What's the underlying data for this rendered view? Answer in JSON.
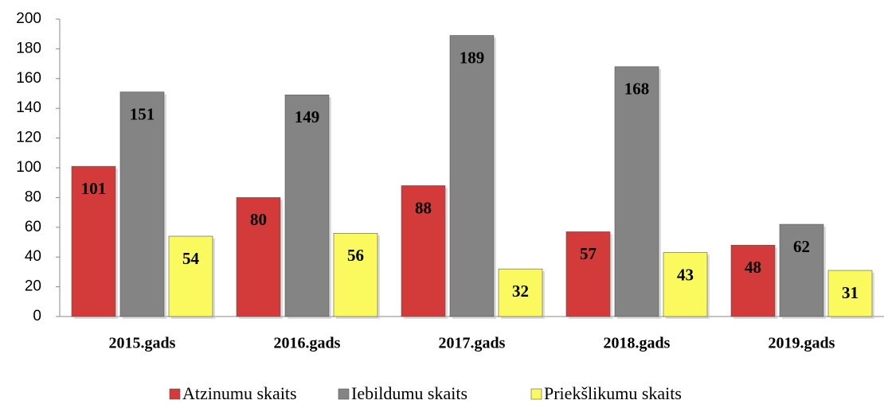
{
  "chart_data": {
    "type": "bar",
    "categories": [
      "2015.gads",
      "2016.gads",
      "2017.gads",
      "2018.gads",
      "2019.gads"
    ],
    "series": [
      {
        "name": "Atzinumu skaits",
        "color": "#d33b3b",
        "values": [
          101,
          80,
          88,
          57,
          48
        ]
      },
      {
        "name": "Iebildumu skaits",
        "color": "#848484",
        "values": [
          151,
          149,
          189,
          168,
          62
        ]
      },
      {
        "name": "Priekšlikumu skaits",
        "color": "#fafa5e",
        "values": [
          54,
          56,
          32,
          43,
          31
        ]
      }
    ],
    "ylim": [
      0,
      200
    ],
    "yticks": [
      0,
      20,
      40,
      60,
      80,
      100,
      120,
      140,
      160,
      180,
      200
    ],
    "grid": false,
    "legend": "bottom"
  }
}
